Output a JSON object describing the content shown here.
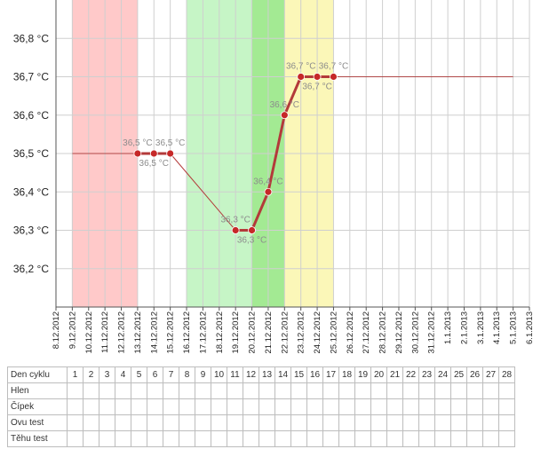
{
  "colors": {
    "line": "#b33a3a",
    "marker": "#c62828",
    "flat_line": "#b04848",
    "grid": "#cfcfcf",
    "band_red": "#ffc9c9",
    "band_green": "#c6f5c6",
    "band_green_dark": "#a3ea93",
    "band_yellow": "#fbf7b8"
  },
  "chart_data": {
    "type": "line",
    "ylim": [
      36.1,
      36.9
    ],
    "y_ticks": [
      36.2,
      36.3,
      36.4,
      36.5,
      36.6,
      36.7,
      36.8
    ],
    "y_tick_labels": [
      "36,2 °C",
      "36,3 °C",
      "36,4 °C",
      "36,5 °C",
      "36,6 °C",
      "36,7 °C",
      "36,8 °C"
    ],
    "x_tick_labels": [
      "8.12.2012",
      "9.12.2012",
      "10.12.2012",
      "11.12.2012",
      "12.12.2012",
      "13.12.2012",
      "14.12.2012",
      "15.12.2012",
      "16.12.2012",
      "17.12.2012",
      "18.12.2012",
      "19.12.2012",
      "20.12.2012",
      "21.12.2012",
      "22.12.2012",
      "23.12.2012",
      "24.12.2012",
      "25.12.2012",
      "26.12.2012",
      "27.12.2012",
      "28.12.2012",
      "29.12.2012",
      "30.12.2012",
      "31.12.2012",
      "1.1.2013",
      "2.1.2013",
      "3.1.2013",
      "4.1.2013",
      "5.1.2013",
      "6.1.2013"
    ],
    "grid": true,
    "bands": [
      {
        "from": "9.12.2012",
        "to": "13.12.2012",
        "color_key": "band_red"
      },
      {
        "from": "16.12.2012",
        "to": "20.12.2012",
        "color_key": "band_green"
      },
      {
        "from": "20.12.2012",
        "to": "22.12.2012",
        "color_key": "band_green_dark"
      },
      {
        "from": "22.12.2012",
        "to": "25.12.2012",
        "color_key": "band_yellow"
      }
    ],
    "flat_segments": [
      {
        "from": "9.12.2012",
        "to": "13.12.2012",
        "y": 36.5
      },
      {
        "from": "25.12.2012",
        "to": "5.1.2013",
        "y": 36.7
      }
    ],
    "series": [
      {
        "points": [
          {
            "x": "13.12.2012",
            "y": 36.5,
            "label": "36,5 °C",
            "label_pos": "above"
          },
          {
            "x": "14.12.2012",
            "y": 36.5,
            "label": "36,5 °C",
            "label_pos": "below"
          },
          {
            "x": "15.12.2012",
            "y": 36.5,
            "label": "36,5 °C",
            "label_pos": "above"
          },
          {
            "x": "19.12.2012",
            "y": 36.3,
            "label": "36,3 °C",
            "label_pos": "above"
          },
          {
            "x": "20.12.2012",
            "y": 36.3,
            "label": "36,3 °C",
            "label_pos": "below"
          },
          {
            "x": "21.12.2012",
            "y": 36.4,
            "label": "36,4 °C",
            "label_pos": "above"
          },
          {
            "x": "22.12.2012",
            "y": 36.6,
            "label": "36,6 °C",
            "label_pos": "above"
          },
          {
            "x": "23.12.2012",
            "y": 36.7,
            "label": "36,7 °C",
            "label_pos": "above"
          },
          {
            "x": "24.12.2012",
            "y": 36.7,
            "label": "36,7 °C",
            "label_pos": "below"
          },
          {
            "x": "25.12.2012",
            "y": 36.7,
            "label": "36,7 °C",
            "label_pos": "above"
          }
        ]
      }
    ]
  },
  "cycle_table": {
    "rows": [
      {
        "label": "Den cyklu",
        "cells": [
          "1",
          "2",
          "3",
          "4",
          "5",
          "6",
          "7",
          "8",
          "9",
          "10",
          "11",
          "12",
          "13",
          "14",
          "15",
          "16",
          "17",
          "18",
          "19",
          "20",
          "21",
          "22",
          "23",
          "24",
          "25",
          "26",
          "27",
          "28"
        ]
      },
      {
        "label": "Hlen",
        "cells": []
      },
      {
        "label": "Čípek",
        "cells": []
      },
      {
        "label": "Ovu test",
        "cells": []
      },
      {
        "label": "Těhu test",
        "cells": []
      }
    ]
  }
}
